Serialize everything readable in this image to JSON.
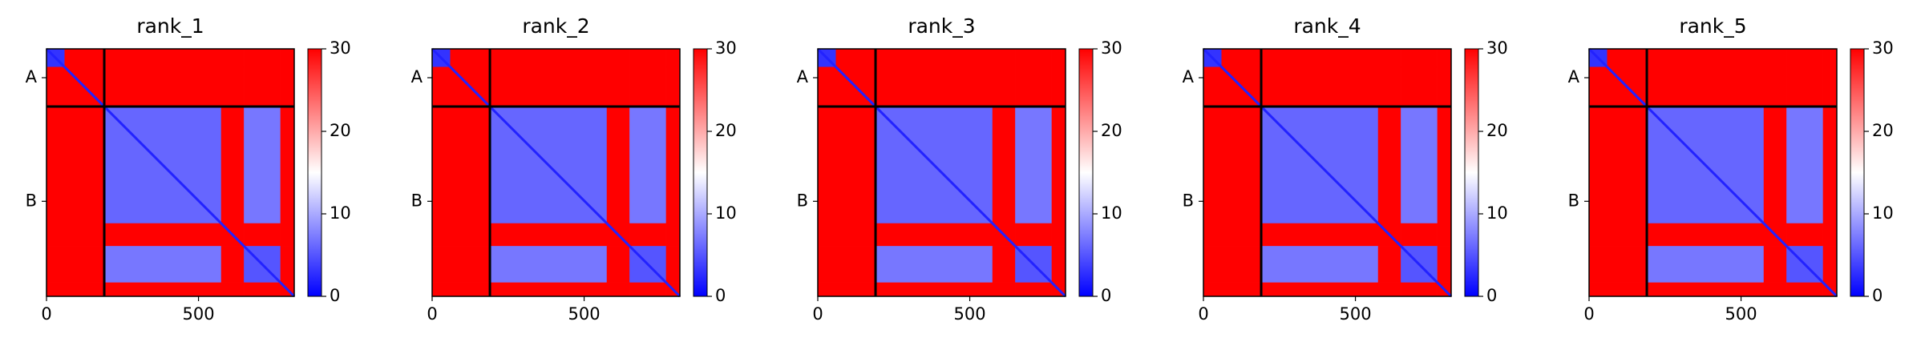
{
  "chart_data": [
    {
      "type": "heatmap",
      "title": "rank_1",
      "cmap": "bwr",
      "clim": [
        0,
        30
      ],
      "colorbar_ticks": [
        0,
        10,
        20,
        30
      ],
      "xlim": [
        0,
        815
      ],
      "ylim": [
        815,
        0
      ],
      "xticks": [
        0,
        500
      ],
      "yticks": [
        {
          "value": 95,
          "label": "A"
        },
        {
          "value": 502,
          "label": "B"
        }
      ],
      "chain_breaks": [
        190
      ],
      "edges": [
        0,
        60,
        190,
        575,
        650,
        770,
        815
      ],
      "diagonal": 2,
      "values": [
        [
          3,
          30,
          30,
          30,
          30,
          30
        ],
        [
          30,
          30,
          30,
          30,
          30,
          30
        ],
        [
          30,
          30,
          6,
          30,
          7,
          30
        ],
        [
          30,
          30,
          30,
          30,
          30,
          30
        ],
        [
          30,
          30,
          7,
          30,
          5,
          30
        ],
        [
          30,
          30,
          30,
          30,
          30,
          30
        ]
      ]
    },
    {
      "type": "heatmap",
      "title": "rank_2",
      "cmap": "bwr",
      "clim": [
        0,
        30
      ],
      "colorbar_ticks": [
        0,
        10,
        20,
        30
      ],
      "xlim": [
        0,
        815
      ],
      "ylim": [
        815,
        0
      ],
      "xticks": [
        0,
        500
      ],
      "yticks": [
        {
          "value": 95,
          "label": "A"
        },
        {
          "value": 502,
          "label": "B"
        }
      ],
      "chain_breaks": [
        190
      ],
      "edges": [
        0,
        60,
        190,
        575,
        650,
        770,
        815
      ],
      "diagonal": 2,
      "values": [
        [
          3,
          30,
          30,
          30,
          30,
          30
        ],
        [
          30,
          30,
          30,
          30,
          30,
          30
        ],
        [
          30,
          30,
          6,
          30,
          7,
          30
        ],
        [
          30,
          30,
          30,
          30,
          30,
          30
        ],
        [
          30,
          30,
          7,
          30,
          5,
          30
        ],
        [
          30,
          30,
          30,
          30,
          30,
          30
        ]
      ]
    },
    {
      "type": "heatmap",
      "title": "rank_3",
      "cmap": "bwr",
      "clim": [
        0,
        30
      ],
      "colorbar_ticks": [
        0,
        10,
        20,
        30
      ],
      "xlim": [
        0,
        815
      ],
      "ylim": [
        815,
        0
      ],
      "xticks": [
        0,
        500
      ],
      "yticks": [
        {
          "value": 95,
          "label": "A"
        },
        {
          "value": 502,
          "label": "B"
        }
      ],
      "chain_breaks": [
        190
      ],
      "edges": [
        0,
        60,
        190,
        575,
        650,
        770,
        815
      ],
      "diagonal": 2,
      "values": [
        [
          3,
          30,
          30,
          30,
          30,
          30
        ],
        [
          30,
          30,
          30,
          30,
          30,
          30
        ],
        [
          30,
          30,
          6,
          30,
          7,
          30
        ],
        [
          30,
          30,
          30,
          30,
          30,
          30
        ],
        [
          30,
          30,
          7,
          30,
          5,
          30
        ],
        [
          30,
          30,
          30,
          30,
          30,
          30
        ]
      ]
    },
    {
      "type": "heatmap",
      "title": "rank_4",
      "cmap": "bwr",
      "clim": [
        0,
        30
      ],
      "colorbar_ticks": [
        0,
        10,
        20,
        30
      ],
      "xlim": [
        0,
        815
      ],
      "ylim": [
        815,
        0
      ],
      "xticks": [
        0,
        500
      ],
      "yticks": [
        {
          "value": 95,
          "label": "A"
        },
        {
          "value": 502,
          "label": "B"
        }
      ],
      "chain_breaks": [
        190
      ],
      "edges": [
        0,
        60,
        190,
        575,
        650,
        770,
        815
      ],
      "diagonal": 2,
      "values": [
        [
          3,
          30,
          30,
          30,
          30,
          30
        ],
        [
          30,
          30,
          30,
          30,
          30,
          30
        ],
        [
          30,
          30,
          6,
          30,
          7,
          30
        ],
        [
          30,
          30,
          30,
          30,
          30,
          30
        ],
        [
          30,
          30,
          7,
          30,
          5,
          30
        ],
        [
          30,
          30,
          30,
          30,
          30,
          30
        ]
      ]
    },
    {
      "type": "heatmap",
      "title": "rank_5",
      "cmap": "bwr",
      "clim": [
        0,
        30
      ],
      "colorbar_ticks": [
        0,
        10,
        20,
        30
      ],
      "xlim": [
        0,
        815
      ],
      "ylim": [
        815,
        0
      ],
      "xticks": [
        0,
        500
      ],
      "yticks": [
        {
          "value": 95,
          "label": "A"
        },
        {
          "value": 502,
          "label": "B"
        }
      ],
      "chain_breaks": [
        190
      ],
      "edges": [
        0,
        60,
        190,
        575,
        650,
        770,
        815
      ],
      "diagonal": 2,
      "values": [
        [
          3,
          30,
          30,
          30,
          30,
          30
        ],
        [
          30,
          30,
          30,
          30,
          30,
          30
        ],
        [
          30,
          30,
          6,
          30,
          7,
          30
        ],
        [
          30,
          30,
          30,
          30,
          30,
          30
        ],
        [
          30,
          30,
          7,
          30,
          5,
          30
        ],
        [
          30,
          30,
          30,
          30,
          30,
          30
        ]
      ]
    }
  ]
}
